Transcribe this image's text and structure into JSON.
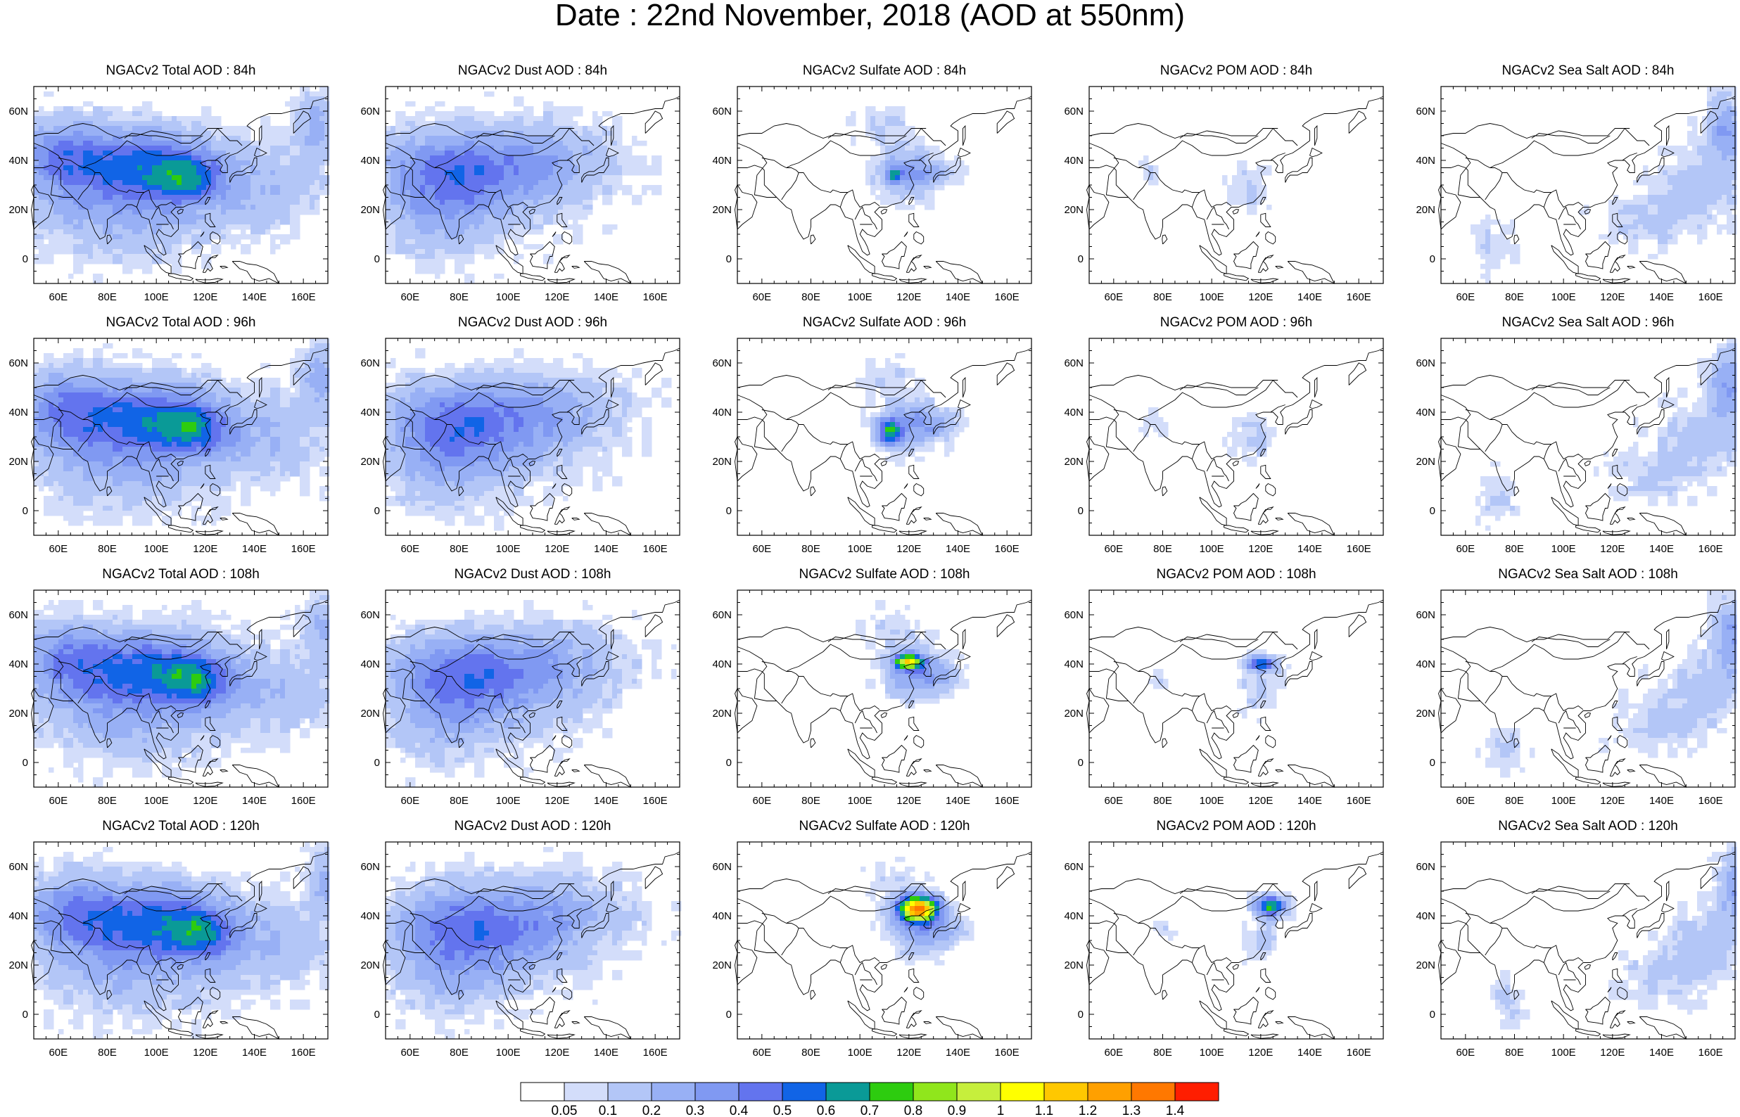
{
  "title": "Date : 22nd November, 2018 (AOD at 550nm)",
  "axes": {
    "lon_ticks": [
      "60E",
      "80E",
      "100E",
      "120E",
      "140E",
      "160E"
    ],
    "lat_ticks": [
      "60N",
      "40N",
      "20N",
      "0"
    ],
    "lon_range": [
      50,
      170
    ],
    "lat_range": [
      -10,
      70
    ]
  },
  "panels": [
    {
      "title": "NGACv2 Total AOD : 84h"
    },
    {
      "title": "NGACv2 Dust AOD : 84h"
    },
    {
      "title": "NGACv2 Sulfate AOD : 84h"
    },
    {
      "title": "NGACv2 POM AOD : 84h"
    },
    {
      "title": "NGACv2 Sea Salt AOD : 84h"
    },
    {
      "title": "NGACv2 Total AOD : 96h"
    },
    {
      "title": "NGACv2 Dust AOD : 96h"
    },
    {
      "title": "NGACv2 Sulfate AOD : 96h"
    },
    {
      "title": "NGACv2 POM AOD : 96h"
    },
    {
      "title": "NGACv2 Sea Salt AOD : 96h"
    },
    {
      "title": "NGACv2 Total AOD : 108h"
    },
    {
      "title": "NGACv2 Dust AOD : 108h"
    },
    {
      "title": "NGACv2 Sulfate AOD : 108h"
    },
    {
      "title": "NGACv2 POM AOD : 108h"
    },
    {
      "title": "NGACv2 Sea Salt AOD : 108h"
    },
    {
      "title": "NGACv2 Total AOD : 120h"
    },
    {
      "title": "NGACv2 Dust AOD : 120h"
    },
    {
      "title": "NGACv2 Sulfate AOD : 120h"
    },
    {
      "title": "NGACv2 POM AOD : 120h"
    },
    {
      "title": "NGACv2 Sea Salt  AOD : 120h"
    }
  ],
  "colorbar": {
    "labels": [
      "0.05",
      "0.1",
      "0.2",
      "0.3",
      "0.4",
      "0.5",
      "0.6",
      "0.7",
      "0.8",
      "0.9",
      "1",
      "1.1",
      "1.2",
      "1.3",
      "1.4"
    ],
    "colors": [
      "#ffffff",
      "#d3ddfa",
      "#b3c6f7",
      "#98b0f5",
      "#8099f2",
      "#6374ee",
      "#1164e6",
      "#0a9a97",
      "#2dcc0f",
      "#90e61c",
      "#c6ef3c",
      "#ffff00",
      "#ffc800",
      "#ffa000",
      "#ff7800",
      "#ff1e00"
    ]
  }
}
